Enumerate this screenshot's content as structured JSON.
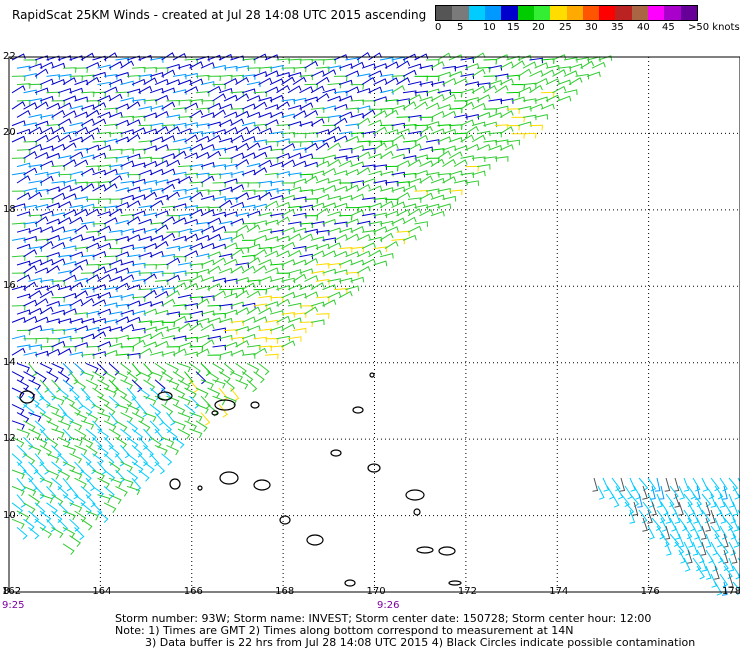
{
  "header": {
    "title": "RapidScat 25KM Winds - created at Jul 28 14:08 UTC 2015 ascending"
  },
  "legend": {
    "labels": [
      "0",
      "5",
      "10",
      "15",
      "20",
      "25",
      "30",
      "35",
      "40",
      "45",
      ">50 knots"
    ],
    "colors": [
      "#555555",
      "#7a7a7a",
      "#00ccff",
      "#0099ff",
      "#0000cc",
      "#00cc00",
      "#33ee33",
      "#ffdd00",
      "#ffaa00",
      "#ff5500",
      "#ff0000",
      "#bb2222",
      "#aa6644",
      "#ff00ff",
      "#aa00cc",
      "#660099"
    ]
  },
  "map": {
    "lon_ticks": [
      "162",
      "164",
      "166",
      "168",
      "170",
      "172",
      "174",
      "176",
      "178"
    ],
    "lat_ticks": [
      "8",
      "10",
      "12",
      "14",
      "16",
      "18",
      "20",
      "22"
    ],
    "lon_range": [
      162,
      178
    ],
    "lat_range": [
      8,
      22
    ],
    "times": [
      "9:25",
      "9:26"
    ]
  },
  "footer": {
    "line1": "Storm number: 93W;  Storm name: INVEST;  Storm center date: 150728;  Storm center hour: 12:00",
    "line2": "Note: 1) Times are GMT  2) Times along bottom correspond to measurement at 14N",
    "line3": "3) Data buffer is 22 hrs from Jul 28 14:08 UTC 2015  4) Black Circles indicate possible contamination"
  }
}
